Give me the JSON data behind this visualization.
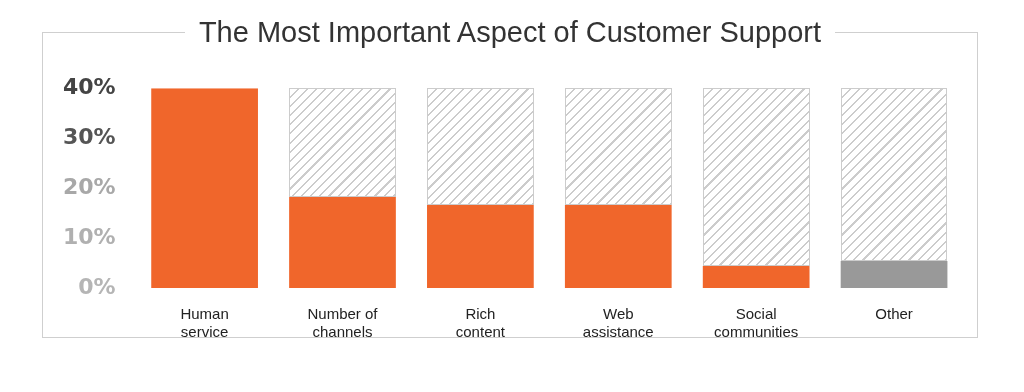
{
  "chart_data": {
    "type": "bar",
    "title": "The Most Important Aspect of Customer Support",
    "categories": [
      "Human service",
      "Number of channels",
      "Rich content",
      "Web assistance",
      "Social communities",
      "Other"
    ],
    "values": [
      40,
      18.2,
      16.6,
      16.6,
      4.4,
      5.4
    ],
    "colors": [
      "#f0662b",
      "#f0662b",
      "#f0662b",
      "#f0662b",
      "#f0662b",
      "#999999"
    ],
    "ylim": [
      0,
      40
    ],
    "yticks": [
      {
        "value": 0,
        "label": "0%"
      },
      {
        "value": 10,
        "label": "10%"
      },
      {
        "value": 20,
        "label": "20%"
      },
      {
        "value": 30,
        "label": "30%"
      },
      {
        "value": 40,
        "label": "40%"
      }
    ],
    "grid": false,
    "legend": false
  }
}
